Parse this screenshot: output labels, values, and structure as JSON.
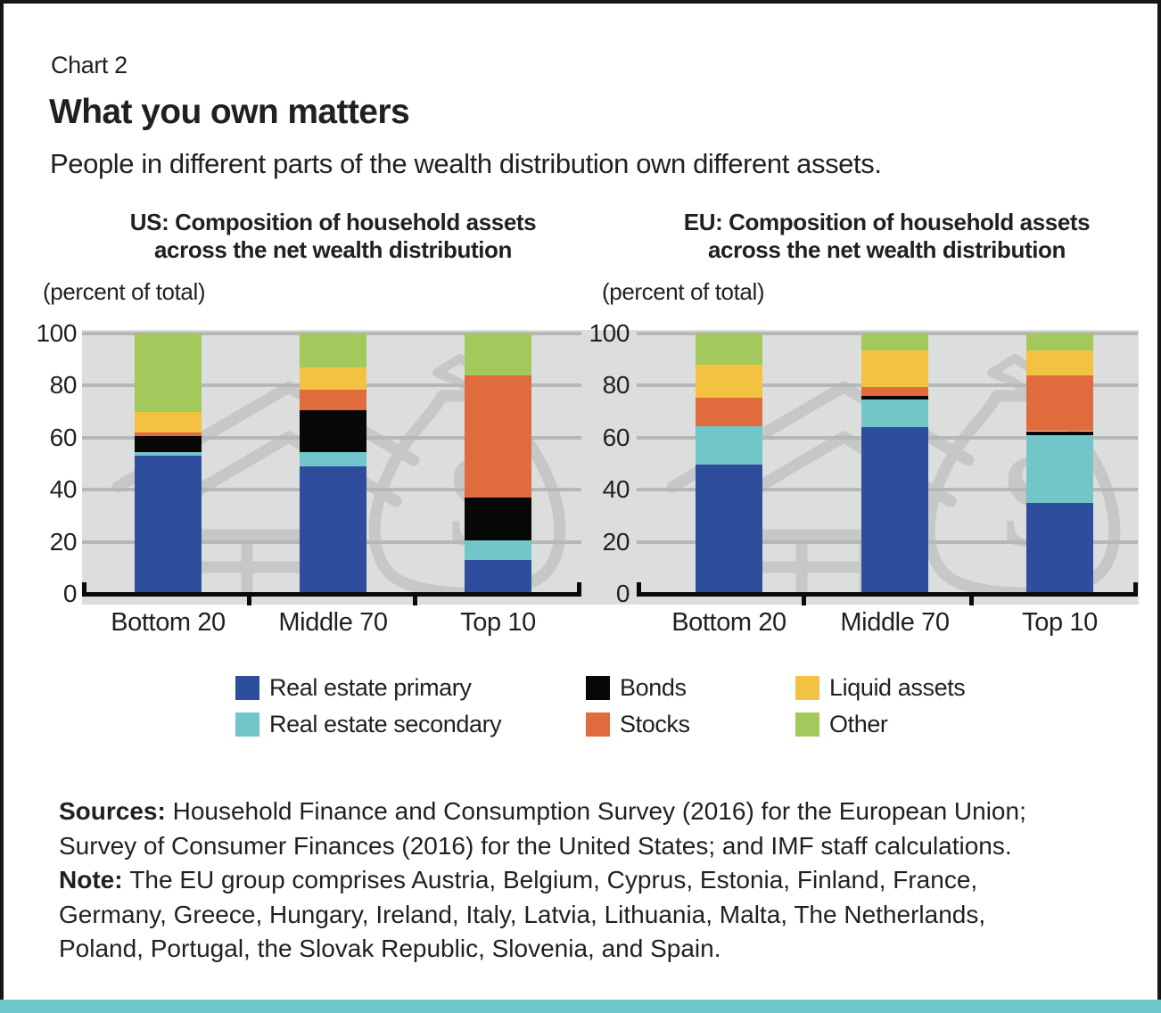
{
  "frame": {
    "chart_label": "Chart 2",
    "title": "What you own matters",
    "subtitle": "People in different parts of the wealth distribution own different assets."
  },
  "headers": {
    "us_title_lines": [
      "US: Composition of household assets",
      "across the net wealth distribution"
    ],
    "eu_title_lines": [
      "EU: Composition of household assets",
      "across the net wealth distribution"
    ],
    "us_unit_label": "(percent of total)",
    "eu_unit_label": "(percent of total)"
  },
  "chart_data": {
    "type": "bar",
    "stacked": true,
    "unit": "percent of total",
    "categories": [
      "Bottom 20",
      "Middle 70",
      "Top 10"
    ],
    "y_axis": {
      "range": [
        0,
        100
      ],
      "ticks": [
        0,
        20,
        40,
        60,
        80,
        100
      ],
      "gridlines": true
    },
    "palette": {
      "Real estate primary": "#2e4d9c",
      "Real estate secondary": "#72c5c9",
      "Bonds": "#070707",
      "Stocks": "#e06b3d",
      "Liquid assets": "#f3c242",
      "Other": "#a3c95c"
    },
    "charts": [
      {
        "id": "us",
        "title": "US: Composition of household assets across the net wealth distribution",
        "series": [
          {
            "name": "Real estate primary",
            "values": [
              53,
              49,
              13
            ]
          },
          {
            "name": "Real estate secondary",
            "values": [
              1.5,
              5.5,
              7.5
            ]
          },
          {
            "name": "Bonds",
            "values": [
              6,
              16,
              16.5
            ]
          },
          {
            "name": "Stocks",
            "values": [
              1.5,
              8,
              47
            ]
          },
          {
            "name": "Liquid assets",
            "values": [
              8,
              8.5,
              0
            ]
          },
          {
            "name": "Other",
            "values": [
              30,
              13,
              16
            ]
          }
        ]
      },
      {
        "id": "eu",
        "title": "EU: Composition of household assets across the net wealth distribution",
        "series": [
          {
            "name": "Real estate primary",
            "values": [
              49.5,
              64,
              35
            ]
          },
          {
            "name": "Real estate secondary",
            "values": [
              15,
              10.5,
              26
            ]
          },
          {
            "name": "Bonds",
            "values": [
              0,
              1.5,
              1.5
            ]
          },
          {
            "name": "Stocks",
            "values": [
              11,
              3.5,
              21.5
            ]
          },
          {
            "name": "Liquid assets",
            "values": [
              12.5,
              14,
              9.5
            ]
          },
          {
            "name": "Other",
            "values": [
              12,
              6.5,
              6.5
            ]
          }
        ]
      }
    ],
    "legend": {
      "position": "bottom",
      "entries": [
        "Real estate primary",
        "Bonds",
        "Liquid assets",
        "Real estate secondary",
        "Stocks",
        "Other"
      ]
    }
  },
  "notes": {
    "lines": [
      {
        "bold": "Sources: ",
        "text": "Household Finance and Consumption Survey (2016) for the European Union;"
      },
      {
        "bold": "",
        "text": "Survey of Consumer Finances (2016) for the United States; and IMF staff calculations."
      },
      {
        "bold": "Note: ",
        "text": "The EU group comprises Austria, Belgium, Cyprus, Estonia, Finland, France,"
      },
      {
        "bold": "",
        "text": "Germany, Greece, Hungary, Ireland, Italy, Latvia, Lithuania, Malta, The Netherlands,"
      },
      {
        "bold": "",
        "text": "Poland, Portugal, the Slovak Republic, Slovenia, and Spain."
      }
    ]
  },
  "colors": {
    "plot_background": "#dcdddd",
    "gridline": "#b6b7b7",
    "watermark": "#c6c7c7",
    "frame_border": "#161616",
    "bottom_strip": "#6ec7cb",
    "text": "#231f20"
  }
}
